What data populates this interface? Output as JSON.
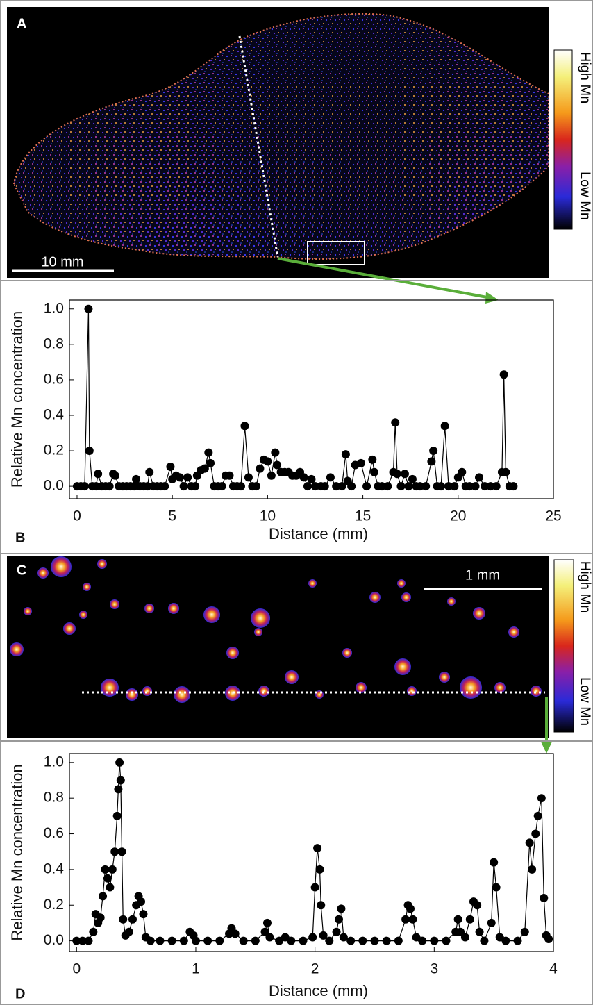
{
  "panel_labels": [
    "A",
    "B",
    "C",
    "D"
  ],
  "image_a": {
    "colorbar_high": "High Mn",
    "colorbar_low": "Low Mn",
    "scale_bar": "10 mm"
  },
  "image_c": {
    "colorbar_high": "High Mn",
    "colorbar_low": "Low Mn",
    "scale_bar": "1 mm"
  },
  "chart_data": [
    {
      "type": "line",
      "markers": true,
      "color": "#000000",
      "xlabel": "Distance (mm)",
      "ylabel": "Relative Mn concentration",
      "xlim": [
        -0.4,
        25
      ],
      "ylim": [
        -0.07,
        1.05
      ],
      "xticks": [
        0,
        5,
        10,
        15,
        20,
        25
      ],
      "yticks": [
        {
          "value": 0,
          "label": "0.0"
        },
        0.2,
        0.4,
        0.6,
        0.8,
        {
          "value": 1,
          "label": "1.0"
        }
      ],
      "x": [
        0,
        0.2,
        0.4,
        0.6,
        0.65,
        0.8,
        1.0,
        1.1,
        1.3,
        1.5,
        1.7,
        1.9,
        2.0,
        2.2,
        2.4,
        2.6,
        2.8,
        3.0,
        3.1,
        3.3,
        3.5,
        3.7,
        3.8,
        4.0,
        4.2,
        4.4,
        4.6,
        4.9,
        5.0,
        5.2,
        5.4,
        5.6,
        5.8,
        6.0,
        6.2,
        6.3,
        6.5,
        6.7,
        6.9,
        7.0,
        7.2,
        7.4,
        7.6,
        7.8,
        8.0,
        8.2,
        8.4,
        8.6,
        8.8,
        9.0,
        9.2,
        9.4,
        9.6,
        9.8,
        10.0,
        10.2,
        10.4,
        10.5,
        10.7,
        10.9,
        11.1,
        11.3,
        11.5,
        11.7,
        11.9,
        12.1,
        12.3,
        12.5,
        12.8,
        13.0,
        13.3,
        13.6,
        13.9,
        14.1,
        14.2,
        14.4,
        14.6,
        14.9,
        15.2,
        15.5,
        15.6,
        15.8,
        16.0,
        16.3,
        16.6,
        16.7,
        16.8,
        17.0,
        17.2,
        17.4,
        17.6,
        17.8,
        18.0,
        18.3,
        18.6,
        18.7,
        18.9,
        19.1,
        19.3,
        19.5,
        19.8,
        20.0,
        20.2,
        20.4,
        20.6,
        20.9,
        21.1,
        21.4,
        21.7,
        22.0,
        22.3,
        22.4,
        22.5,
        22.7,
        22.9
      ],
      "values": [
        0,
        0,
        0,
        1.0,
        0.2,
        0,
        0,
        0.07,
        0,
        0,
        0,
        0.07,
        0.06,
        0,
        0,
        0,
        0,
        0,
        0.04,
        0,
        0,
        0,
        0.08,
        0,
        0,
        0,
        0,
        0.11,
        0.04,
        0.06,
        0.05,
        0,
        0.05,
        0,
        0,
        0.06,
        0.09,
        0.1,
        0.19,
        0.13,
        0,
        0,
        0,
        0.06,
        0.06,
        0,
        0,
        0,
        0.34,
        0.05,
        0,
        0,
        0.1,
        0.15,
        0.14,
        0.06,
        0.19,
        0.12,
        0.08,
        0.08,
        0.08,
        0.06,
        0.06,
        0.08,
        0.05,
        0,
        0.04,
        0,
        0,
        0,
        0.05,
        0,
        0,
        0.18,
        0.03,
        0,
        0.12,
        0.13,
        0,
        0.15,
        0.08,
        0,
        0,
        0,
        0.08,
        0.36,
        0.07,
        0,
        0.07,
        0,
        0.04,
        0,
        0,
        0,
        0.14,
        0.2,
        0,
        0,
        0.34,
        0,
        0,
        0.05,
        0.08,
        0,
        0,
        0,
        0.05,
        0,
        0,
        0,
        0.08,
        0.63,
        0.08,
        0,
        0
      ]
    },
    {
      "type": "line",
      "markers": true,
      "color": "#000000",
      "xlabel": "Distance (mm)",
      "ylabel": "Relative Mn concentration",
      "xlim": [
        -0.06,
        4
      ],
      "ylim": [
        -0.06,
        1.05
      ],
      "xticks": [
        0,
        1,
        2,
        3,
        4
      ],
      "yticks": [
        {
          "value": 0,
          "label": "0.0"
        },
        0.2,
        0.4,
        0.6,
        0.8,
        {
          "value": 1,
          "label": "1.0"
        }
      ],
      "x": [
        0,
        0.05,
        0.1,
        0.14,
        0.16,
        0.18,
        0.2,
        0.22,
        0.24,
        0.26,
        0.28,
        0.3,
        0.32,
        0.34,
        0.35,
        0.36,
        0.37,
        0.38,
        0.39,
        0.41,
        0.44,
        0.47,
        0.5,
        0.52,
        0.54,
        0.56,
        0.58,
        0.62,
        0.7,
        0.8,
        0.9,
        0.95,
        0.98,
        1.0,
        1.1,
        1.2,
        1.28,
        1.3,
        1.33,
        1.4,
        1.5,
        1.58,
        1.6,
        1.62,
        1.7,
        1.75,
        1.8,
        1.9,
        1.98,
        2.0,
        2.02,
        2.04,
        2.05,
        2.07,
        2.12,
        2.18,
        2.2,
        2.22,
        2.24,
        2.3,
        2.4,
        2.5,
        2.6,
        2.7,
        2.76,
        2.78,
        2.8,
        2.82,
        2.85,
        2.9,
        3.0,
        3.1,
        3.18,
        3.2,
        3.22,
        3.26,
        3.3,
        3.33,
        3.36,
        3.38,
        3.42,
        3.48,
        3.5,
        3.52,
        3.55,
        3.6,
        3.7,
        3.76,
        3.8,
        3.82,
        3.85,
        3.87,
        3.9,
        3.92,
        3.94,
        3.96
      ],
      "values": [
        0,
        0,
        0,
        0.05,
        0.15,
        0.1,
        0.13,
        0.25,
        0.4,
        0.35,
        0.3,
        0.4,
        0.5,
        0.7,
        0.85,
        1.0,
        0.9,
        0.5,
        0.12,
        0.03,
        0.05,
        0.12,
        0.2,
        0.25,
        0.22,
        0.15,
        0.02,
        0,
        0,
        0,
        0,
        0.05,
        0.03,
        0,
        0,
        0,
        0.04,
        0.07,
        0.04,
        0,
        0,
        0.05,
        0.1,
        0.02,
        0,
        0.02,
        0,
        0,
        0.02,
        0.3,
        0.52,
        0.4,
        0.2,
        0.03,
        0,
        0.05,
        0.12,
        0.18,
        0.02,
        0,
        0,
        0,
        0,
        0,
        0.12,
        0.2,
        0.18,
        0.12,
        0.02,
        0,
        0,
        0,
        0.05,
        0.12,
        0.05,
        0.02,
        0.12,
        0.22,
        0.2,
        0.05,
        0,
        0.1,
        0.44,
        0.3,
        0.02,
        0,
        0,
        0.05,
        0.55,
        0.4,
        0.6,
        0.7,
        0.8,
        0.24,
        0.03,
        0.01
      ]
    }
  ]
}
